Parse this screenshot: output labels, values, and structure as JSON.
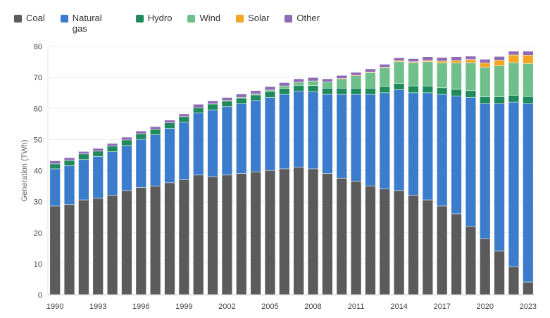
{
  "chart_data": {
    "type": "bar",
    "stacked": true,
    "title": "",
    "xlabel": "",
    "ylabel": "Generation (TWh)",
    "ylim": [
      0,
      80
    ],
    "yticks": [
      0,
      10,
      20,
      30,
      40,
      50,
      60,
      70,
      80
    ],
    "xtick_labels": [
      "1990",
      "1993",
      "1996",
      "1999",
      "2002",
      "2005",
      "2008",
      "2011",
      "2014",
      "2017",
      "2020",
      "2023"
    ],
    "grid": true,
    "legend_position": "top-left",
    "categories": [
      "1990",
      "1991",
      "1992",
      "1993",
      "1994",
      "1995",
      "1996",
      "1997",
      "1998",
      "1999",
      "2000",
      "2001",
      "2002",
      "2003",
      "2004",
      "2005",
      "2006",
      "2007",
      "2008",
      "2009",
      "2010",
      "2011",
      "2012",
      "2013",
      "2014",
      "2015",
      "2016",
      "2017",
      "2018",
      "2019",
      "2020",
      "2021",
      "2022",
      "2023"
    ],
    "series": [
      {
        "name": "Coal",
        "color": "#5b5b5b",
        "values": [
          28.5,
          29,
          30.5,
          31,
          32,
          33.5,
          34.5,
          35,
          36,
          37,
          38.5,
          38,
          38.5,
          39,
          39.5,
          40,
          40.5,
          41,
          40.5,
          39,
          37.5,
          36.5,
          35,
          34,
          33.5,
          32,
          30.5,
          28.5,
          26,
          22,
          18,
          14,
          9,
          4
        ]
      },
      {
        "name": "Natural gas",
        "color": "#3b7dcc",
        "values": [
          12,
          12.5,
          13,
          13.5,
          14,
          14.5,
          15.5,
          16.5,
          17.5,
          18.5,
          20,
          21.5,
          22,
          22.5,
          23,
          23.5,
          24,
          24.5,
          24.8,
          25.5,
          27,
          28,
          29.5,
          31,
          32.5,
          33,
          34.5,
          36,
          38,
          41.5,
          43.5,
          47.5,
          53,
          57.5
        ]
      },
      {
        "name": "Hydro",
        "color": "#1f8a5b",
        "values": [
          1.6,
          1.7,
          1.8,
          1.7,
          1.8,
          1.8,
          1.8,
          1.7,
          1.8,
          1.8,
          1.7,
          1.8,
          1.8,
          1.8,
          1.8,
          1.9,
          1.9,
          1.9,
          2,
          2,
          2,
          2,
          2,
          2,
          2,
          2.2,
          2.2,
          2.1,
          2.1,
          2.2,
          2.2,
          2.2,
          2.2,
          2.3
        ]
      },
      {
        "name": "Wind",
        "color": "#6fbf8b",
        "values": [
          0,
          0,
          0,
          0,
          0,
          0,
          0,
          0,
          0,
          0,
          0,
          0.1,
          0.2,
          0.2,
          0.3,
          0.5,
          0.8,
          1,
          1.5,
          2,
          3,
          4,
          5,
          6,
          7,
          7.5,
          7.8,
          8,
          8.5,
          9,
          9.5,
          10,
          10.5,
          10.6
        ]
      },
      {
        "name": "Solar",
        "color": "#f5a623",
        "values": [
          0,
          0,
          0,
          0,
          0,
          0,
          0,
          0,
          0,
          0,
          0,
          0,
          0,
          0,
          0,
          0,
          0,
          0,
          0,
          0,
          0.1,
          0.1,
          0.2,
          0.2,
          0.3,
          0.3,
          0.4,
          0.6,
          0.8,
          1,
          1.4,
          1.8,
          2.5,
          2.7
        ]
      },
      {
        "name": "Other",
        "color": "#8f6bb6",
        "values": [
          1,
          0.9,
          0.8,
          0.9,
          0.9,
          0.9,
          0.9,
          0.9,
          0.9,
          0.9,
          1.1,
          1,
          1,
          1.1,
          1.1,
          1.1,
          1.1,
          1.1,
          1.1,
          1,
          1,
          1,
          1,
          1,
          1,
          1,
          1.2,
          1.2,
          1.2,
          1.1,
          1.2,
          1.2,
          1.2,
          1.3
        ]
      }
    ]
  },
  "legend": [
    {
      "label": "Coal"
    },
    {
      "label": "Natural gas"
    },
    {
      "label": "Hydro"
    },
    {
      "label": "Wind"
    },
    {
      "label": "Solar"
    },
    {
      "label": "Other"
    }
  ]
}
